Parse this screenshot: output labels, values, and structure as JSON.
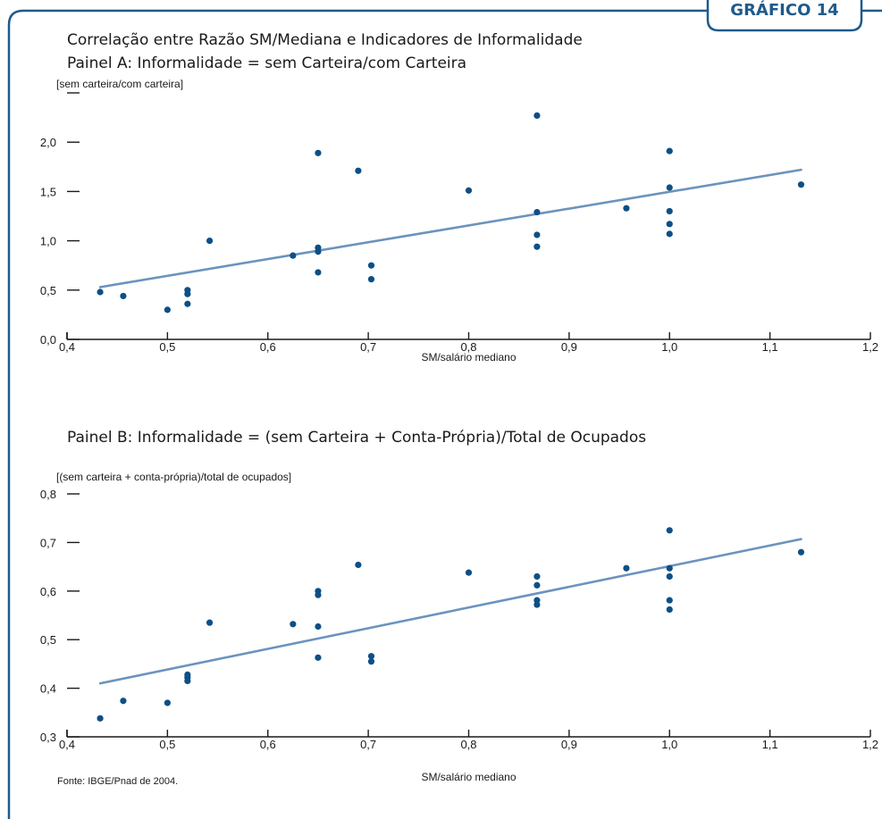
{
  "header": {
    "tab_label": "GRÁFICO 14",
    "title": "Correlação entre Razão SM/Mediana e Indicadores de Informalidade"
  },
  "colors": {
    "frame": "#1e5a8c",
    "points": "#0d4f86",
    "trend": "#6b93bf",
    "axis": "#1a1a1a"
  },
  "chart_data": [
    {
      "type": "scatter",
      "title": "Painel A: Informalidade = sem Carteira/com Carteira",
      "ylabel": "[sem carteira/com carteira]",
      "xlabel": "SM/salário mediano",
      "xlim": [
        0.4,
        1.2
      ],
      "ylim": [
        0.0,
        2.5
      ],
      "xticks": [
        "0,4",
        "0,5",
        "0,6",
        "0,7",
        "0,8",
        "0,9",
        "1,0",
        "1,1",
        "1,2"
      ],
      "yticks": [
        "0,0",
        "0,5",
        "1,0",
        "1,5",
        "2,0",
        ""
      ],
      "points": [
        [
          0.433,
          0.48
        ],
        [
          0.456,
          0.44
        ],
        [
          0.5,
          0.3
        ],
        [
          0.52,
          0.5
        ],
        [
          0.52,
          0.46
        ],
        [
          0.52,
          0.36
        ],
        [
          0.542,
          1.0
        ],
        [
          0.625,
          0.85
        ],
        [
          0.65,
          1.89
        ],
        [
          0.65,
          0.93
        ],
        [
          0.65,
          0.89
        ],
        [
          0.65,
          0.68
        ],
        [
          0.69,
          1.71
        ],
        [
          0.703,
          0.75
        ],
        [
          0.703,
          0.61
        ],
        [
          0.8,
          1.51
        ],
        [
          0.868,
          2.27
        ],
        [
          0.868,
          1.29
        ],
        [
          0.868,
          1.06
        ],
        [
          0.868,
          0.94
        ],
        [
          0.957,
          1.33
        ],
        [
          1.0,
          1.91
        ],
        [
          1.0,
          1.54
        ],
        [
          1.0,
          1.3
        ],
        [
          1.0,
          1.17
        ],
        [
          1.0,
          1.07
        ],
        [
          1.131,
          1.57
        ]
      ],
      "trend": [
        [
          0.433,
          0.53
        ],
        [
          1.131,
          1.72
        ]
      ]
    },
    {
      "type": "scatter",
      "title": "Painel B: Informalidade = (sem Carteira + Conta-Própria)/Total de Ocupados",
      "ylabel": "[(sem carteira + conta-própria)/total de ocupados]",
      "xlabel": "SM/salário mediano",
      "xlim": [
        0.4,
        1.2
      ],
      "ylim": [
        0.3,
        0.8
      ],
      "xticks": [
        "0,4",
        "0,5",
        "0,6",
        "0,7",
        "0,8",
        "0,9",
        "1,0",
        "1,1",
        "1,2"
      ],
      "yticks": [
        "0,3",
        "0,4",
        "0,5",
        "0,6",
        "0,7",
        "0,8"
      ],
      "points": [
        [
          0.433,
          0.338
        ],
        [
          0.456,
          0.374
        ],
        [
          0.5,
          0.37
        ],
        [
          0.52,
          0.428
        ],
        [
          0.52,
          0.422
        ],
        [
          0.52,
          0.415
        ],
        [
          0.542,
          0.535
        ],
        [
          0.625,
          0.532
        ],
        [
          0.65,
          0.6
        ],
        [
          0.65,
          0.592
        ],
        [
          0.65,
          0.527
        ],
        [
          0.65,
          0.463
        ],
        [
          0.69,
          0.654
        ],
        [
          0.703,
          0.466
        ],
        [
          0.703,
          0.455
        ],
        [
          0.8,
          0.638
        ],
        [
          0.868,
          0.63
        ],
        [
          0.868,
          0.612
        ],
        [
          0.868,
          0.581
        ],
        [
          0.868,
          0.572
        ],
        [
          0.957,
          0.647
        ],
        [
          1.0,
          0.725
        ],
        [
          1.0,
          0.647
        ],
        [
          1.0,
          0.63
        ],
        [
          1.0,
          0.581
        ],
        [
          1.0,
          0.562
        ],
        [
          1.131,
          0.68
        ]
      ],
      "trend": [
        [
          0.433,
          0.41
        ],
        [
          1.131,
          0.707
        ]
      ]
    }
  ],
  "footer": {
    "source": "Fonte: IBGE/Pnad de 2004."
  }
}
